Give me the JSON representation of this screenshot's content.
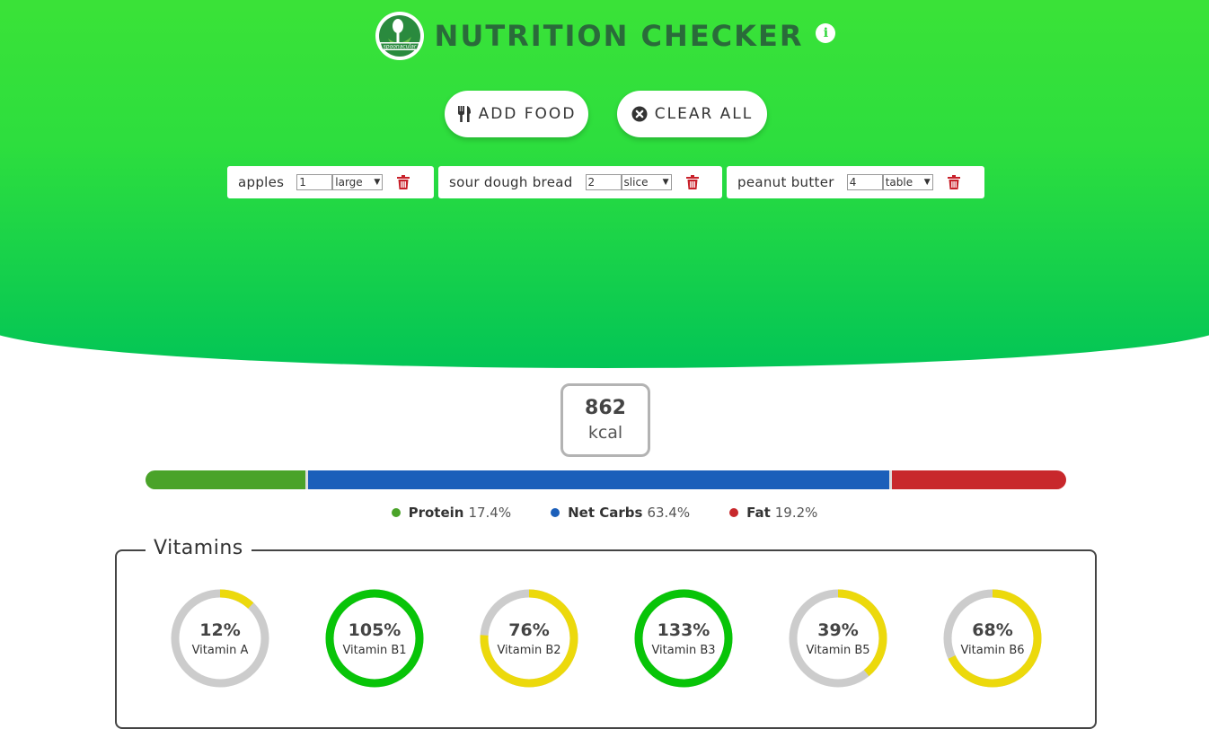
{
  "app": {
    "title": "NUTRITION CHECKER",
    "logo_text": "spoonacular",
    "info_icon": "info-icon"
  },
  "actions": {
    "add_food_label": "ADD FOOD",
    "clear_all_label": "CLEAR ALL"
  },
  "foods": [
    {
      "name": "apples",
      "quantity": "1",
      "unit": "large"
    },
    {
      "name": "sour dough bread",
      "quantity": "2",
      "unit": "slice"
    },
    {
      "name": "peanut butter",
      "quantity": "4",
      "unit": "table"
    }
  ],
  "summary": {
    "calories_value": "862",
    "calories_unit": "kcal"
  },
  "macros": [
    {
      "name": "Protein",
      "percent_label": "17.4%",
      "percent": 17.4,
      "color": "#4aa329"
    },
    {
      "name": "Net Carbs",
      "percent_label": "63.4%",
      "percent": 63.4,
      "color": "#1b5fba"
    },
    {
      "name": "Fat",
      "percent_label": "19.2%",
      "percent": 19.2,
      "color": "#c8282c"
    }
  ],
  "vitamins": {
    "title": "Vitamins",
    "items": [
      {
        "name": "Vitamin A",
        "label": "12%",
        "percent": 12
      },
      {
        "name": "Vitamin B1",
        "label": "105%",
        "percent": 105
      },
      {
        "name": "Vitamin B2",
        "label": "76%",
        "percent": 76
      },
      {
        "name": "Vitamin B3",
        "label": "133%",
        "percent": 133
      },
      {
        "name": "Vitamin B5",
        "label": "39%",
        "percent": 39
      },
      {
        "name": "Vitamin B6",
        "label": "68%",
        "percent": 68
      }
    ],
    "colors": {
      "met": "#08c408",
      "partial": "#ecd90c",
      "track": "#cccccc"
    }
  }
}
